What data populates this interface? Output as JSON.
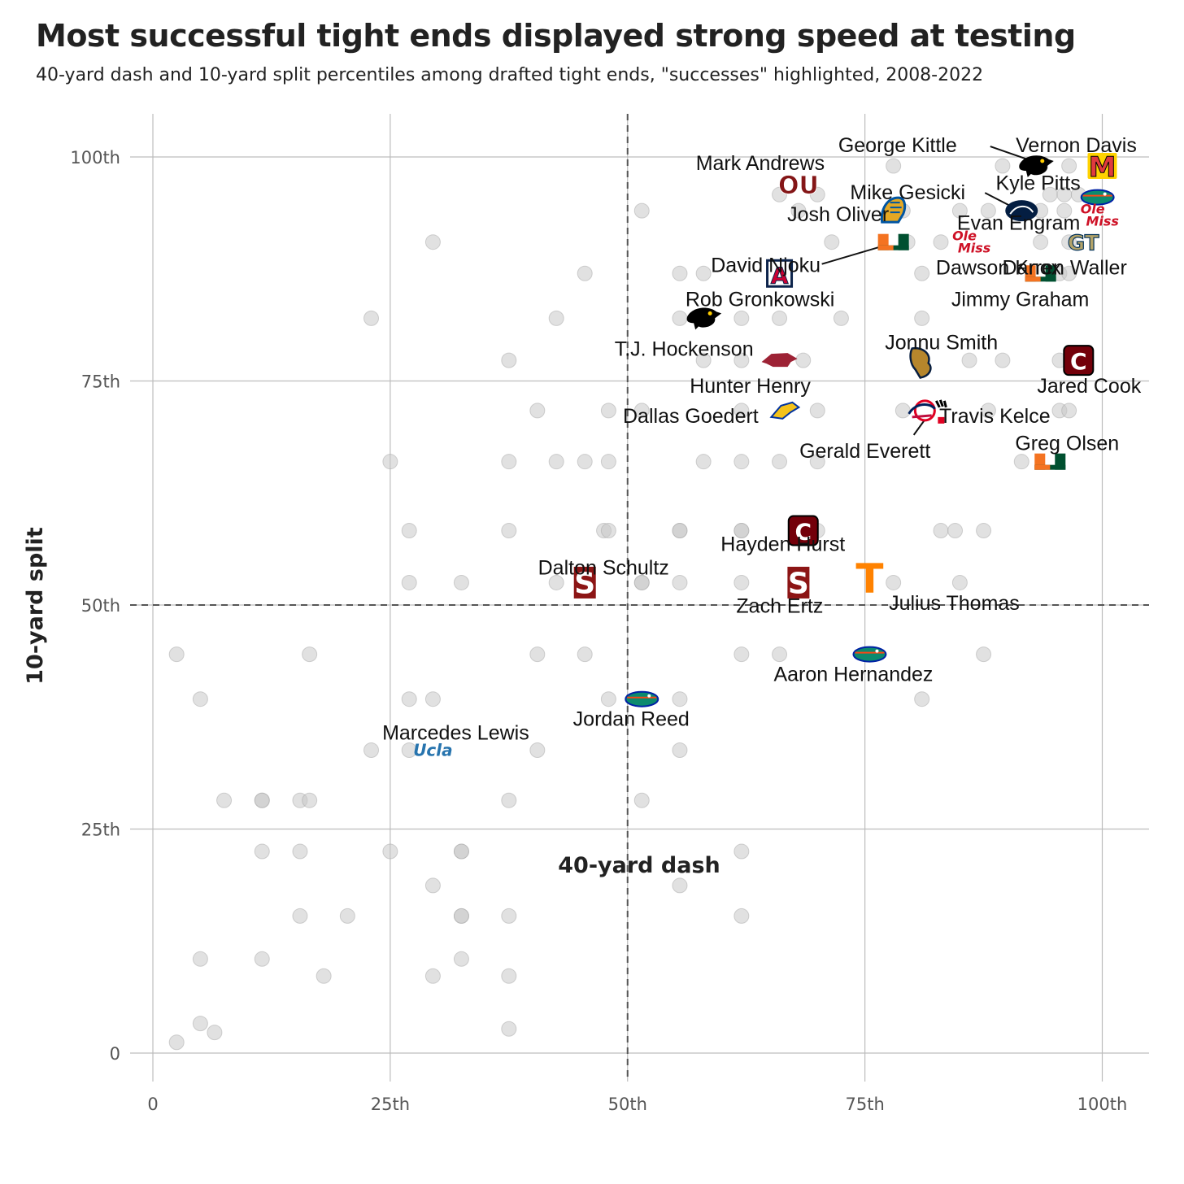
{
  "chart_data": {
    "type": "scatter",
    "title": "Most successful tight ends displayed strong speed at testing",
    "subtitle": "40-yard dash and 10-yard split percentiles among drafted tight ends, \"successes\" highlighted, 2008-2022",
    "xlabel": "40-yard dash",
    "ylabel": "10-yard split",
    "xlim": [
      -2,
      105
    ],
    "ylim": [
      -2,
      105
    ],
    "x_ticks": [
      {
        "value": 0,
        "label": "0"
      },
      {
        "value": 25,
        "label": "25th"
      },
      {
        "value": 50,
        "label": "50th"
      },
      {
        "value": 75,
        "label": "75th"
      },
      {
        "value": 100,
        "label": "100th"
      }
    ],
    "y_ticks": [
      {
        "value": 0,
        "label": "0"
      },
      {
        "value": 25,
        "label": "25th"
      },
      {
        "value": 50,
        "label": "50th"
      },
      {
        "value": 75,
        "label": "75th"
      },
      {
        "value": 100,
        "label": "100th"
      }
    ],
    "reference_lines": {
      "x": 50,
      "y": 50
    },
    "grid": true,
    "background_points": [
      [
        2.5,
        1.2
      ],
      [
        5,
        3.3
      ],
      [
        6.5,
        2.3
      ],
      [
        5,
        10.5
      ],
      [
        18,
        8.6
      ],
      [
        29.5,
        8.6
      ],
      [
        32.5,
        10.5
      ],
      [
        37.5,
        8.6
      ],
      [
        37.5,
        2.7
      ],
      [
        11.5,
        10.5
      ],
      [
        15.5,
        15.3
      ],
      [
        20.5,
        15.3
      ],
      [
        29.5,
        18.7
      ],
      [
        32.5,
        15.3
      ],
      [
        32.5,
        15.3
      ],
      [
        37.5,
        15.3
      ],
      [
        55.5,
        18.7
      ],
      [
        62,
        15.3
      ],
      [
        11.5,
        22.5
      ],
      [
        15.5,
        22.5
      ],
      [
        25,
        22.5
      ],
      [
        32.5,
        22.5
      ],
      [
        32.5,
        22.5
      ],
      [
        62,
        22.5
      ],
      [
        7.5,
        28.2
      ],
      [
        11.5,
        28.2
      ],
      [
        11.5,
        28.2
      ],
      [
        15.5,
        28.2
      ],
      [
        16.5,
        28.2
      ],
      [
        37.5,
        28.2
      ],
      [
        51.5,
        28.2
      ],
      [
        23,
        33.8
      ],
      [
        27,
        33.8
      ],
      [
        40.5,
        33.8
      ],
      [
        55.5,
        33.8
      ],
      [
        5,
        39.5
      ],
      [
        27,
        39.5
      ],
      [
        29.5,
        39.5
      ],
      [
        48,
        39.5
      ],
      [
        55.5,
        39.5
      ],
      [
        81,
        39.5
      ],
      [
        2.5,
        44.5
      ],
      [
        16.5,
        44.5
      ],
      [
        40.5,
        44.5
      ],
      [
        45.5,
        44.5
      ],
      [
        62,
        44.5
      ],
      [
        66,
        44.5
      ],
      [
        87.5,
        44.5
      ],
      [
        27,
        52.5
      ],
      [
        32.5,
        52.5
      ],
      [
        42.5,
        52.5
      ],
      [
        51.5,
        52.5
      ],
      [
        51.5,
        52.5
      ],
      [
        55.5,
        52.5
      ],
      [
        62,
        52.5
      ],
      [
        78,
        52.5
      ],
      [
        85,
        52.5
      ],
      [
        27,
        58.3
      ],
      [
        37.5,
        58.3
      ],
      [
        47.5,
        58.3
      ],
      [
        48,
        58.3
      ],
      [
        55.5,
        58.3
      ],
      [
        55.5,
        58.3
      ],
      [
        62,
        58.3
      ],
      [
        62,
        58.3
      ],
      [
        70,
        58.3
      ],
      [
        83,
        58.3
      ],
      [
        84.5,
        58.3
      ],
      [
        87.5,
        58.3
      ],
      [
        25,
        66
      ],
      [
        37.5,
        66
      ],
      [
        42.5,
        66
      ],
      [
        45.5,
        66
      ],
      [
        48,
        66
      ],
      [
        58,
        66
      ],
      [
        62,
        66
      ],
      [
        66,
        66
      ],
      [
        70,
        66
      ],
      [
        91.5,
        66
      ],
      [
        40.5,
        71.7
      ],
      [
        48,
        71.7
      ],
      [
        51.5,
        71.7
      ],
      [
        62,
        71.7
      ],
      [
        70,
        71.7
      ],
      [
        79,
        71.7
      ],
      [
        88,
        71.7
      ],
      [
        95.5,
        71.7
      ],
      [
        96.5,
        71.7
      ],
      [
        37.5,
        77.3
      ],
      [
        58,
        77.3
      ],
      [
        62,
        77.3
      ],
      [
        68.5,
        77.3
      ],
      [
        86,
        77.3
      ],
      [
        89.5,
        77.3
      ],
      [
        95.5,
        77.3
      ],
      [
        23,
        82
      ],
      [
        42.5,
        82
      ],
      [
        55.5,
        82
      ],
      [
        62,
        82
      ],
      [
        66,
        82
      ],
      [
        72.5,
        82
      ],
      [
        81,
        82
      ],
      [
        45.5,
        87
      ],
      [
        55.5,
        87
      ],
      [
        58,
        87
      ],
      [
        81,
        87
      ],
      [
        95.5,
        87
      ],
      [
        96.5,
        87
      ],
      [
        29.5,
        90.5
      ],
      [
        71.5,
        90.5
      ],
      [
        79.5,
        90.5
      ],
      [
        83,
        90.5
      ],
      [
        93.5,
        90.5
      ],
      [
        96.5,
        90.5
      ],
      [
        51.5,
        94
      ],
      [
        68,
        94
      ],
      [
        79,
        94
      ],
      [
        85,
        94
      ],
      [
        88,
        94
      ],
      [
        93.5,
        94
      ],
      [
        96,
        94
      ],
      [
        66,
        95.8
      ],
      [
        70,
        95.8
      ],
      [
        94.5,
        95.8
      ],
      [
        96,
        95.8
      ],
      [
        97.5,
        95.8
      ],
      [
        78,
        99
      ],
      [
        89.5,
        99
      ],
      [
        93.5,
        99
      ],
      [
        96.5,
        99
      ]
    ],
    "highlighted": [
      {
        "player": "Vernon Davis",
        "x": 100,
        "y": 99,
        "logo": "maryland-terrapins-logo"
      },
      {
        "player": "George Kittle",
        "x": 93,
        "y": 99,
        "logo": "iowa-hawkeyes-logo"
      },
      {
        "player": "Mark Andrews",
        "x": 68,
        "y": 97,
        "logo": "oklahoma-sooners-logo"
      },
      {
        "player": "Kyle Pitts",
        "x": 99.5,
        "y": 95.5,
        "logo": "florida-gators-logo"
      },
      {
        "player": "Mike Gesicki",
        "x": 91.5,
        "y": 94,
        "logo": "penn-state-logo"
      },
      {
        "player": "Josh Oliver",
        "x": 78,
        "y": 94,
        "logo": "san-jose-state-logo"
      },
      {
        "player": "Evan Engram",
        "x": 99.5,
        "y": 93.5,
        "logo": "ole-miss-logo"
      },
      {
        "player": "David Njoku",
        "x": 78,
        "y": 90.5,
        "logo": "miami-hurricanes-logo"
      },
      {
        "player": "Dawson Knox",
        "x": 86,
        "y": 90.5,
        "logo": "ole-miss-logo"
      },
      {
        "player": "Darren Waller",
        "x": 98,
        "y": 90.5,
        "logo": "georgia-tech-logo"
      },
      {
        "player": "Rob Gronkowski",
        "x": 66,
        "y": 87,
        "logo": "arizona-wildcats-logo"
      },
      {
        "player": "Jimmy Graham",
        "x": 93.5,
        "y": 87,
        "logo": "miami-hurricanes-logo"
      },
      {
        "player": "T.J. Hockenson",
        "x": 58,
        "y": 82,
        "logo": "iowa-hawkeyes-logo"
      },
      {
        "player": "Jonnu Smith",
        "x": 81,
        "y": 77,
        "logo": "fiu-panthers-logo"
      },
      {
        "player": "Hunter Henry",
        "x": 66,
        "y": 77.3,
        "logo": "arkansas-razorbacks-logo"
      },
      {
        "player": "Jared Cook",
        "x": 97.5,
        "y": 77.3,
        "logo": "south-carolina-logo"
      },
      {
        "player": "Travis Kelce",
        "x": 82,
        "y": 71.7,
        "logo": "cincinnati-bearcats-logo"
      },
      {
        "player": "Dallas Goedert",
        "x": 66.5,
        "y": 71.7,
        "logo": "south-dakota-state-logo"
      },
      {
        "player": "Gerald Everett",
        "x": 81,
        "y": 71.7,
        "logo": "south-alabama-logo"
      },
      {
        "player": "Greg Olsen",
        "x": 94.5,
        "y": 66,
        "logo": "miami-hurricanes-logo"
      },
      {
        "player": "Hayden Hurst",
        "x": 68.5,
        "y": 58.3,
        "logo": "south-carolina-logo"
      },
      {
        "player": "Dalton Schultz",
        "x": 45.5,
        "y": 52.5,
        "logo": "stanford-cardinal-logo"
      },
      {
        "player": "Zach Ertz",
        "x": 68,
        "y": 52.5,
        "logo": "stanford-cardinal-logo"
      },
      {
        "player": "Julius Thomas",
        "x": 75.5,
        "y": 53,
        "logo": "portland-state-logo"
      },
      {
        "player": "Aaron Hernandez",
        "x": 75.5,
        "y": 44.5,
        "logo": "florida-gators-logo"
      },
      {
        "player": "Jordan Reed",
        "x": 51.5,
        "y": 39.5,
        "logo": "florida-gators-logo"
      },
      {
        "player": "Marcedes Lewis",
        "x": 29.5,
        "y": 33.8,
        "logo": "ucla-bruins-logo"
      }
    ]
  },
  "logo_text": {
    "ucla": "Ucla",
    "ole_miss_top": "Ole",
    "ole_miss_bottom": "Miss",
    "stanford": "S",
    "tennessee": "T",
    "oklahoma": "OU",
    "maryland": "M",
    "arizona": "A",
    "georgia_tech": "GT",
    "miami": "U",
    "south_carolina": "C"
  },
  "colors": {
    "background_point": "#c8c8c8",
    "grid": "#bdbdbd",
    "reference_line": "#555555",
    "leader_line": "#111111"
  }
}
